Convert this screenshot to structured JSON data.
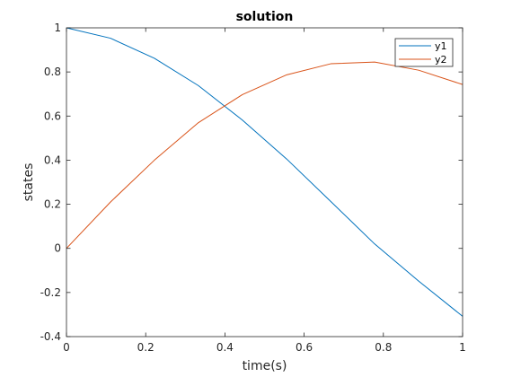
{
  "chart_data": {
    "type": "line",
    "title": "solution",
    "xlabel": "time(s)",
    "ylabel": "states",
    "xlim": [
      0,
      1
    ],
    "ylim": [
      -0.4,
      1
    ],
    "xticks": [
      "0",
      "0.2",
      "0.4",
      "0.6",
      "0.8",
      "1"
    ],
    "yticks": [
      "-0.4",
      "-0.2",
      "0",
      "0.2",
      "0.4",
      "0.6",
      "0.8",
      "1"
    ],
    "grid": false,
    "legend_position": "top-right",
    "x": [
      0,
      0.111,
      0.222,
      0.333,
      0.444,
      0.556,
      0.667,
      0.778,
      0.889,
      1.0
    ],
    "series": [
      {
        "name": "y1",
        "color": "#0072BD",
        "values": [
          1.0,
          0.953,
          0.862,
          0.738,
          0.582,
          0.405,
          0.213,
          0.02,
          -0.148,
          -0.308
        ]
      },
      {
        "name": "y2",
        "color": "#D95319",
        "values": [
          0.0,
          0.21,
          0.4,
          0.57,
          0.697,
          0.787,
          0.837,
          0.845,
          0.808,
          0.743
        ]
      }
    ]
  }
}
